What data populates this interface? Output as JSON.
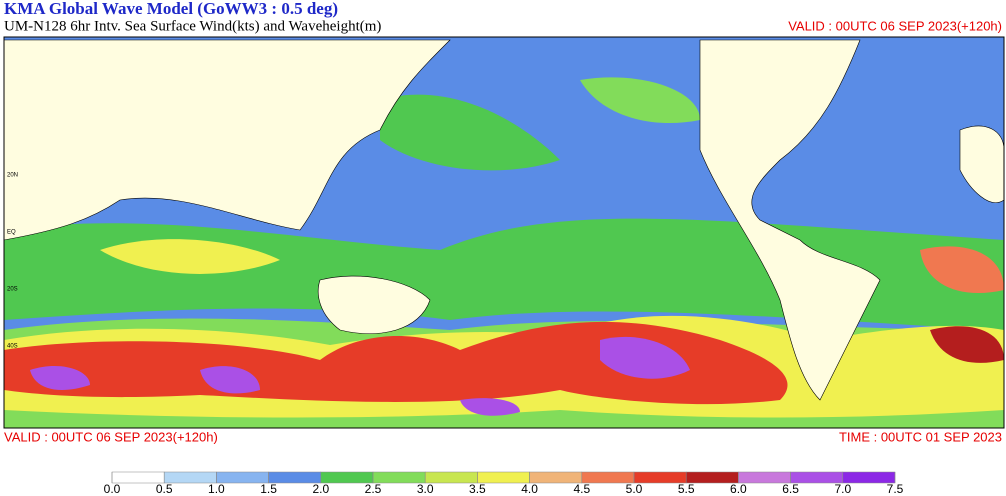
{
  "header": {
    "title": "KMA  Global Wave Model (GoWW3 : 0.5 deg)",
    "subtitle": "UM-N128  6hr Intv. Sea Surface Wind(kts) and Waveheight(m)",
    "valid": "VALID : 00UTC 06 SEP 2023(+120h)"
  },
  "footer": {
    "valid": "VALID : 00UTC 06 SEP 2023(+120h)",
    "time": "TIME : 00UTC 01 SEP 2023"
  },
  "map": {
    "lat_labels": [
      "20N",
      "EQ",
      "20S",
      "40S"
    ]
  },
  "legend": {
    "ticks": [
      {
        "value": 0,
        "label": "0.0"
      },
      0.5,
      {
        "value": 1,
        "label": "1.0"
      },
      1.5,
      {
        "value": 2,
        "label": "2.0"
      },
      2.5,
      {
        "value": 3,
        "label": "3.0"
      },
      3.5,
      {
        "value": 4,
        "label": "4.0"
      },
      4.5,
      {
        "value": 5,
        "label": "5.0"
      },
      5.5,
      {
        "value": 6,
        "label": "6.0"
      },
      6.5,
      {
        "value": 7,
        "label": "7.0"
      },
      7.5
    ],
    "colors": [
      "#ffffff",
      "#b4d7f5",
      "#87b4f0",
      "#5a8ce6",
      "#50c850",
      "#82dc5a",
      "#c8e650",
      "#f0f050",
      "#f0b478",
      "#f07850",
      "#e63c28",
      "#b41e1e",
      "#c878dc",
      "#aa50e6",
      "#8c28e6"
    ]
  }
}
